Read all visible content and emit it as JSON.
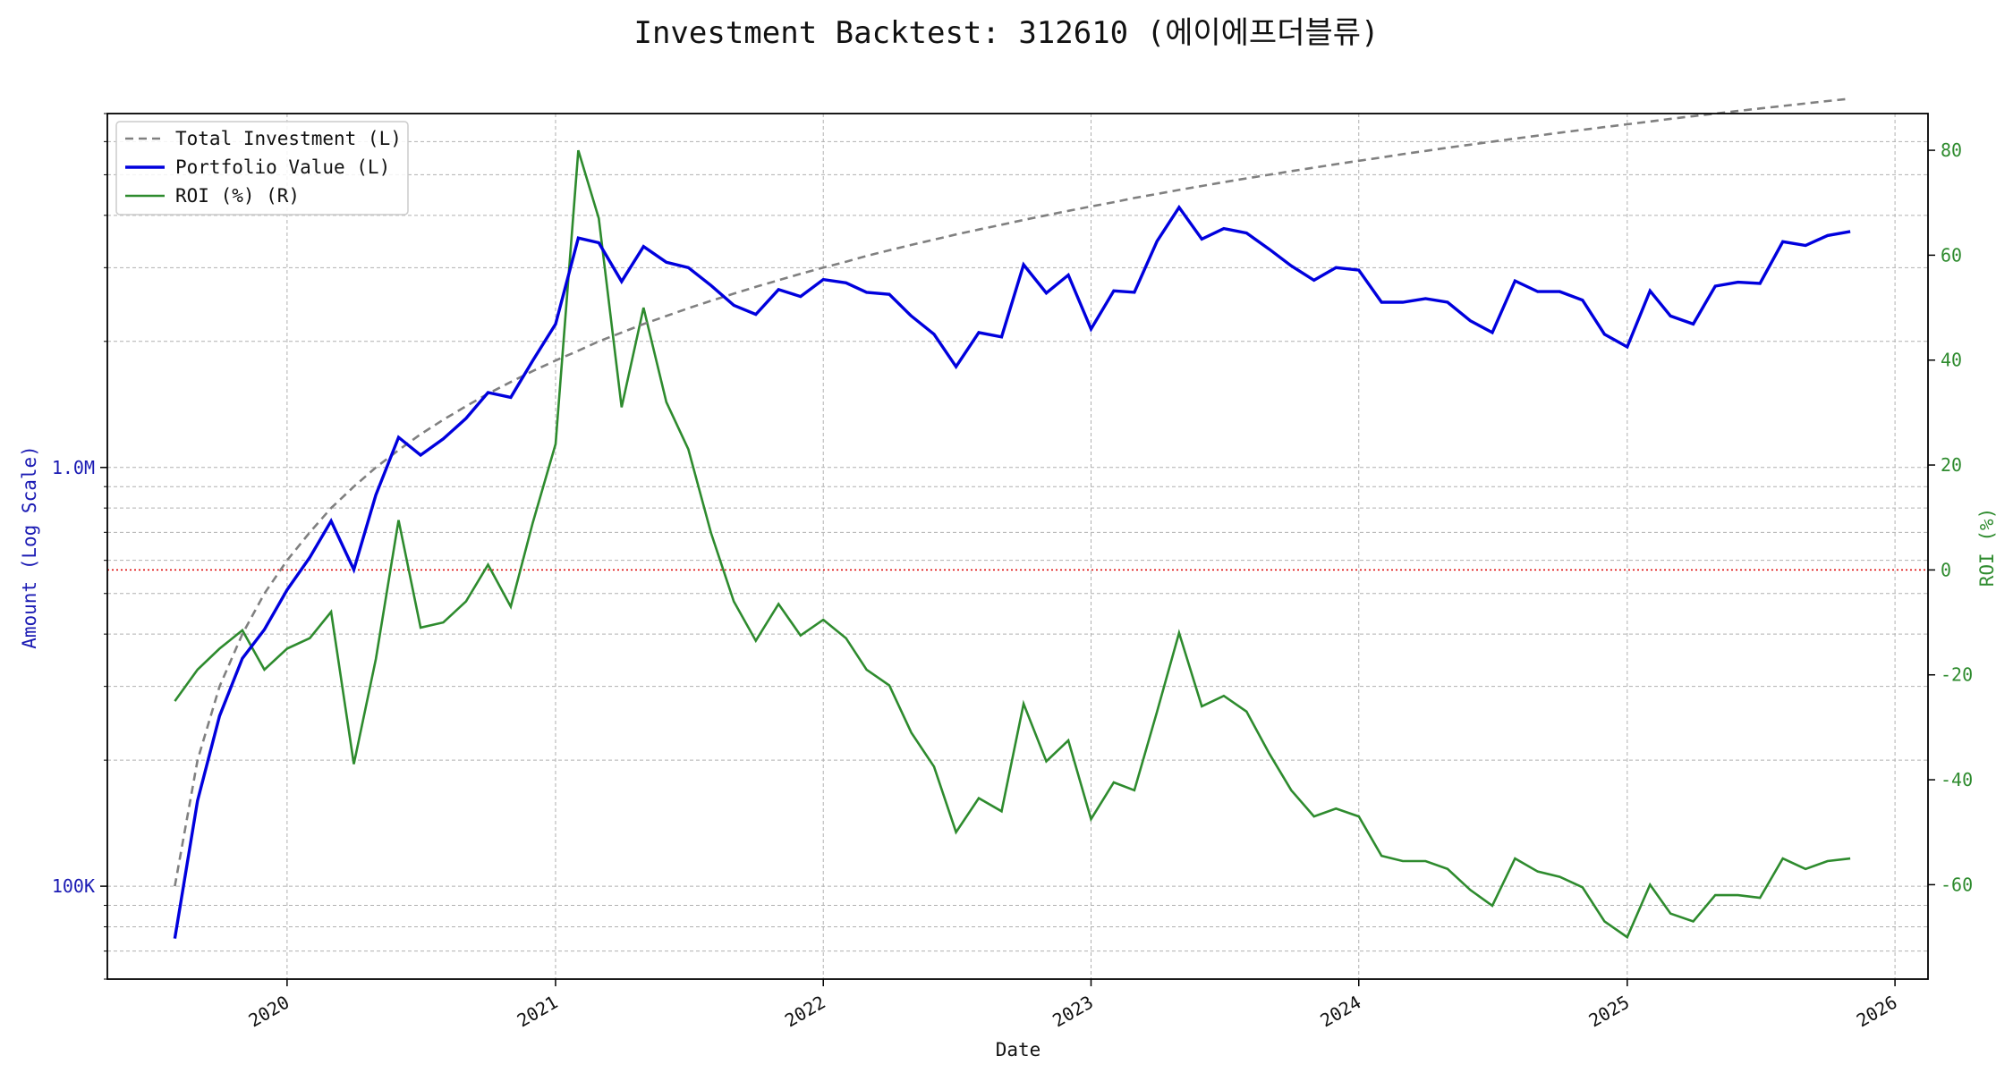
{
  "chart_data": {
    "type": "line",
    "title": "Investment Backtest: 312610 (에이에프더블류)",
    "xlabel": "Date",
    "ylabel_left": "Amount (Log Scale)",
    "ylabel_right": "ROI (%)",
    "left_scale": "log",
    "ylim_left": [
      60000,
      7000000
    ],
    "ylim_right": [
      -78,
      87
    ],
    "xlim": [
      "2019-05-01",
      "2026-02-15"
    ],
    "grid": true,
    "legend_position": "top-left",
    "colors": {
      "total_investment": "#808080",
      "portfolio_value": "#0000dd",
      "roi": "#2e8b2e",
      "zero_line": "#dd0000",
      "left_axis_text": "#1a1ab3",
      "right_axis_text": "#2e8b2e"
    },
    "x_ticks": [
      {
        "date": "2020-01-01",
        "label": "2020"
      },
      {
        "date": "2021-01-01",
        "label": "2021"
      },
      {
        "date": "2022-01-01",
        "label": "2022"
      },
      {
        "date": "2023-01-01",
        "label": "2023"
      },
      {
        "date": "2024-01-01",
        "label": "2024"
      },
      {
        "date": "2025-01-01",
        "label": "2025"
      },
      {
        "date": "2026-01-01",
        "label": "2026"
      }
    ],
    "left_ticks": [
      {
        "value": 100000,
        "label": "100K"
      },
      {
        "value": 1000000,
        "label": "1.0M"
      }
    ],
    "right_ticks": [
      {
        "value": -60,
        "label": "-60"
      },
      {
        "value": -40,
        "label": "-40"
      },
      {
        "value": -20,
        "label": "-20"
      },
      {
        "value": 0,
        "label": "0"
      },
      {
        "value": 20,
        "label": "20"
      },
      {
        "value": 40,
        "label": "40"
      },
      {
        "value": 60,
        "label": "60"
      },
      {
        "value": 80,
        "label": "80"
      }
    ],
    "dates": [
      "2019-08-01",
      "2019-09-01",
      "2019-10-01",
      "2019-11-01",
      "2019-12-01",
      "2020-01-01",
      "2020-02-01",
      "2020-03-01",
      "2020-04-01",
      "2020-05-01",
      "2020-06-01",
      "2020-07-01",
      "2020-08-01",
      "2020-09-01",
      "2020-10-01",
      "2020-11-01",
      "2020-12-01",
      "2021-01-01",
      "2021-02-01",
      "2021-03-01",
      "2021-04-01",
      "2021-05-01",
      "2021-06-01",
      "2021-07-01",
      "2021-08-01",
      "2021-09-01",
      "2021-10-01",
      "2021-11-01",
      "2021-12-01",
      "2022-01-01",
      "2022-02-01",
      "2022-03-01",
      "2022-04-01",
      "2022-05-01",
      "2022-06-01",
      "2022-07-01",
      "2022-08-01",
      "2022-09-01",
      "2022-10-01",
      "2022-11-01",
      "2022-12-01",
      "2023-01-01",
      "2023-02-01",
      "2023-03-01",
      "2023-04-01",
      "2023-05-01",
      "2023-06-01",
      "2023-07-01",
      "2023-08-01",
      "2023-09-01",
      "2023-10-01",
      "2023-11-01",
      "2023-12-01",
      "2024-01-01",
      "2024-02-01",
      "2024-03-01",
      "2024-04-01",
      "2024-05-01",
      "2024-06-01",
      "2024-07-01",
      "2024-08-01",
      "2024-09-01",
      "2024-10-01",
      "2024-11-01",
      "2024-12-01",
      "2025-01-01",
      "2025-02-01",
      "2025-03-01",
      "2025-04-01",
      "2025-05-01",
      "2025-06-01",
      "2025-07-01",
      "2025-08-01",
      "2025-09-01",
      "2025-10-01",
      "2025-11-01"
    ],
    "series": [
      {
        "name": "Total Investment (L)",
        "axis": "left",
        "style": "dashed",
        "values": [
          100000,
          200000,
          300000,
          400000,
          500000,
          600000,
          700000,
          800000,
          900000,
          1000000,
          1100000,
          1200000,
          1300000,
          1400000,
          1500000,
          1600000,
          1700000,
          1800000,
          1900000,
          2000000,
          2100000,
          2200000,
          2300000,
          2400000,
          2500000,
          2600000,
          2700000,
          2800000,
          2900000,
          3000000,
          3100000,
          3200000,
          3300000,
          3400000,
          3500000,
          3600000,
          3700000,
          3800000,
          3900000,
          4000000,
          4100000,
          4200000,
          4300000,
          4400000,
          4500000,
          4600000,
          4700000,
          4800000,
          4900000,
          5000000,
          5100000,
          5200000,
          5300000,
          5400000,
          5500000,
          5600000,
          5700000,
          5800000,
          5900000,
          6000000,
          6100000,
          6200000,
          6300000,
          6400000,
          6500000,
          6600000,
          6700000,
          6800000,
          6900000,
          7000000,
          7100000,
          7200000,
          7300000,
          7400000,
          7500000,
          7600000
        ]
      },
      {
        "name": "Portfolio Value (L)",
        "axis": "left",
        "style": "solid",
        "values": [
          75000,
          160000,
          255000,
          350000,
          410000,
          510000,
          610000,
          745000,
          570000,
          860000,
          1180000,
          1070000,
          1170000,
          1310000,
          1510000,
          1470000,
          1800000,
          2200000,
          3530000,
          3440000,
          2780000,
          3370000,
          3090000,
          3000000,
          2720000,
          2440000,
          2320000,
          2660000,
          2560000,
          2810000,
          2760000,
          2620000,
          2590000,
          2300000,
          2080000,
          1740000,
          2100000,
          2050000,
          3050000,
          2610000,
          2880000,
          2140000,
          2640000,
          2620000,
          3470000,
          4180000,
          3510000,
          3720000,
          3630000,
          3320000,
          3030000,
          2800000,
          3000000,
          2960000,
          2480000,
          2480000,
          2530000,
          2480000,
          2240000,
          2100000,
          2790000,
          2630000,
          2630000,
          2510000,
          2080000,
          1940000,
          2640000,
          2300000,
          2200000,
          2710000,
          2770000,
          2750000,
          3460000,
          3390000,
          3580000,
          3660000
        ]
      },
      {
        "name": "ROI (%) (R)",
        "axis": "right",
        "style": "solid",
        "values": [
          -25,
          -19,
          -15,
          -11.5,
          -19,
          -15,
          -13,
          -8,
          -37,
          -17,
          9.5,
          -11,
          -10,
          -6,
          1,
          -7,
          9,
          24,
          80,
          67,
          31,
          50,
          32,
          23,
          7,
          -6,
          -13.5,
          -6.5,
          -12.5,
          -9.5,
          -13,
          -19,
          -22,
          -31,
          -37.5,
          -50,
          -43.5,
          -46,
          -25.5,
          -36.5,
          -32.5,
          -47.5,
          -40.5,
          -42,
          -27,
          -12,
          -26,
          -24,
          -27,
          -35,
          -42,
          -47,
          -45.5,
          -47,
          -54.5,
          -55.5,
          -55.5,
          -57,
          -61,
          -64,
          -55,
          -57.5,
          -58.5,
          -60.5,
          -67,
          -70,
          -60,
          -65.5,
          -67,
          -62,
          -62,
          -62.5,
          -55,
          -57,
          -55.5,
          -55
        ]
      }
    ]
  }
}
